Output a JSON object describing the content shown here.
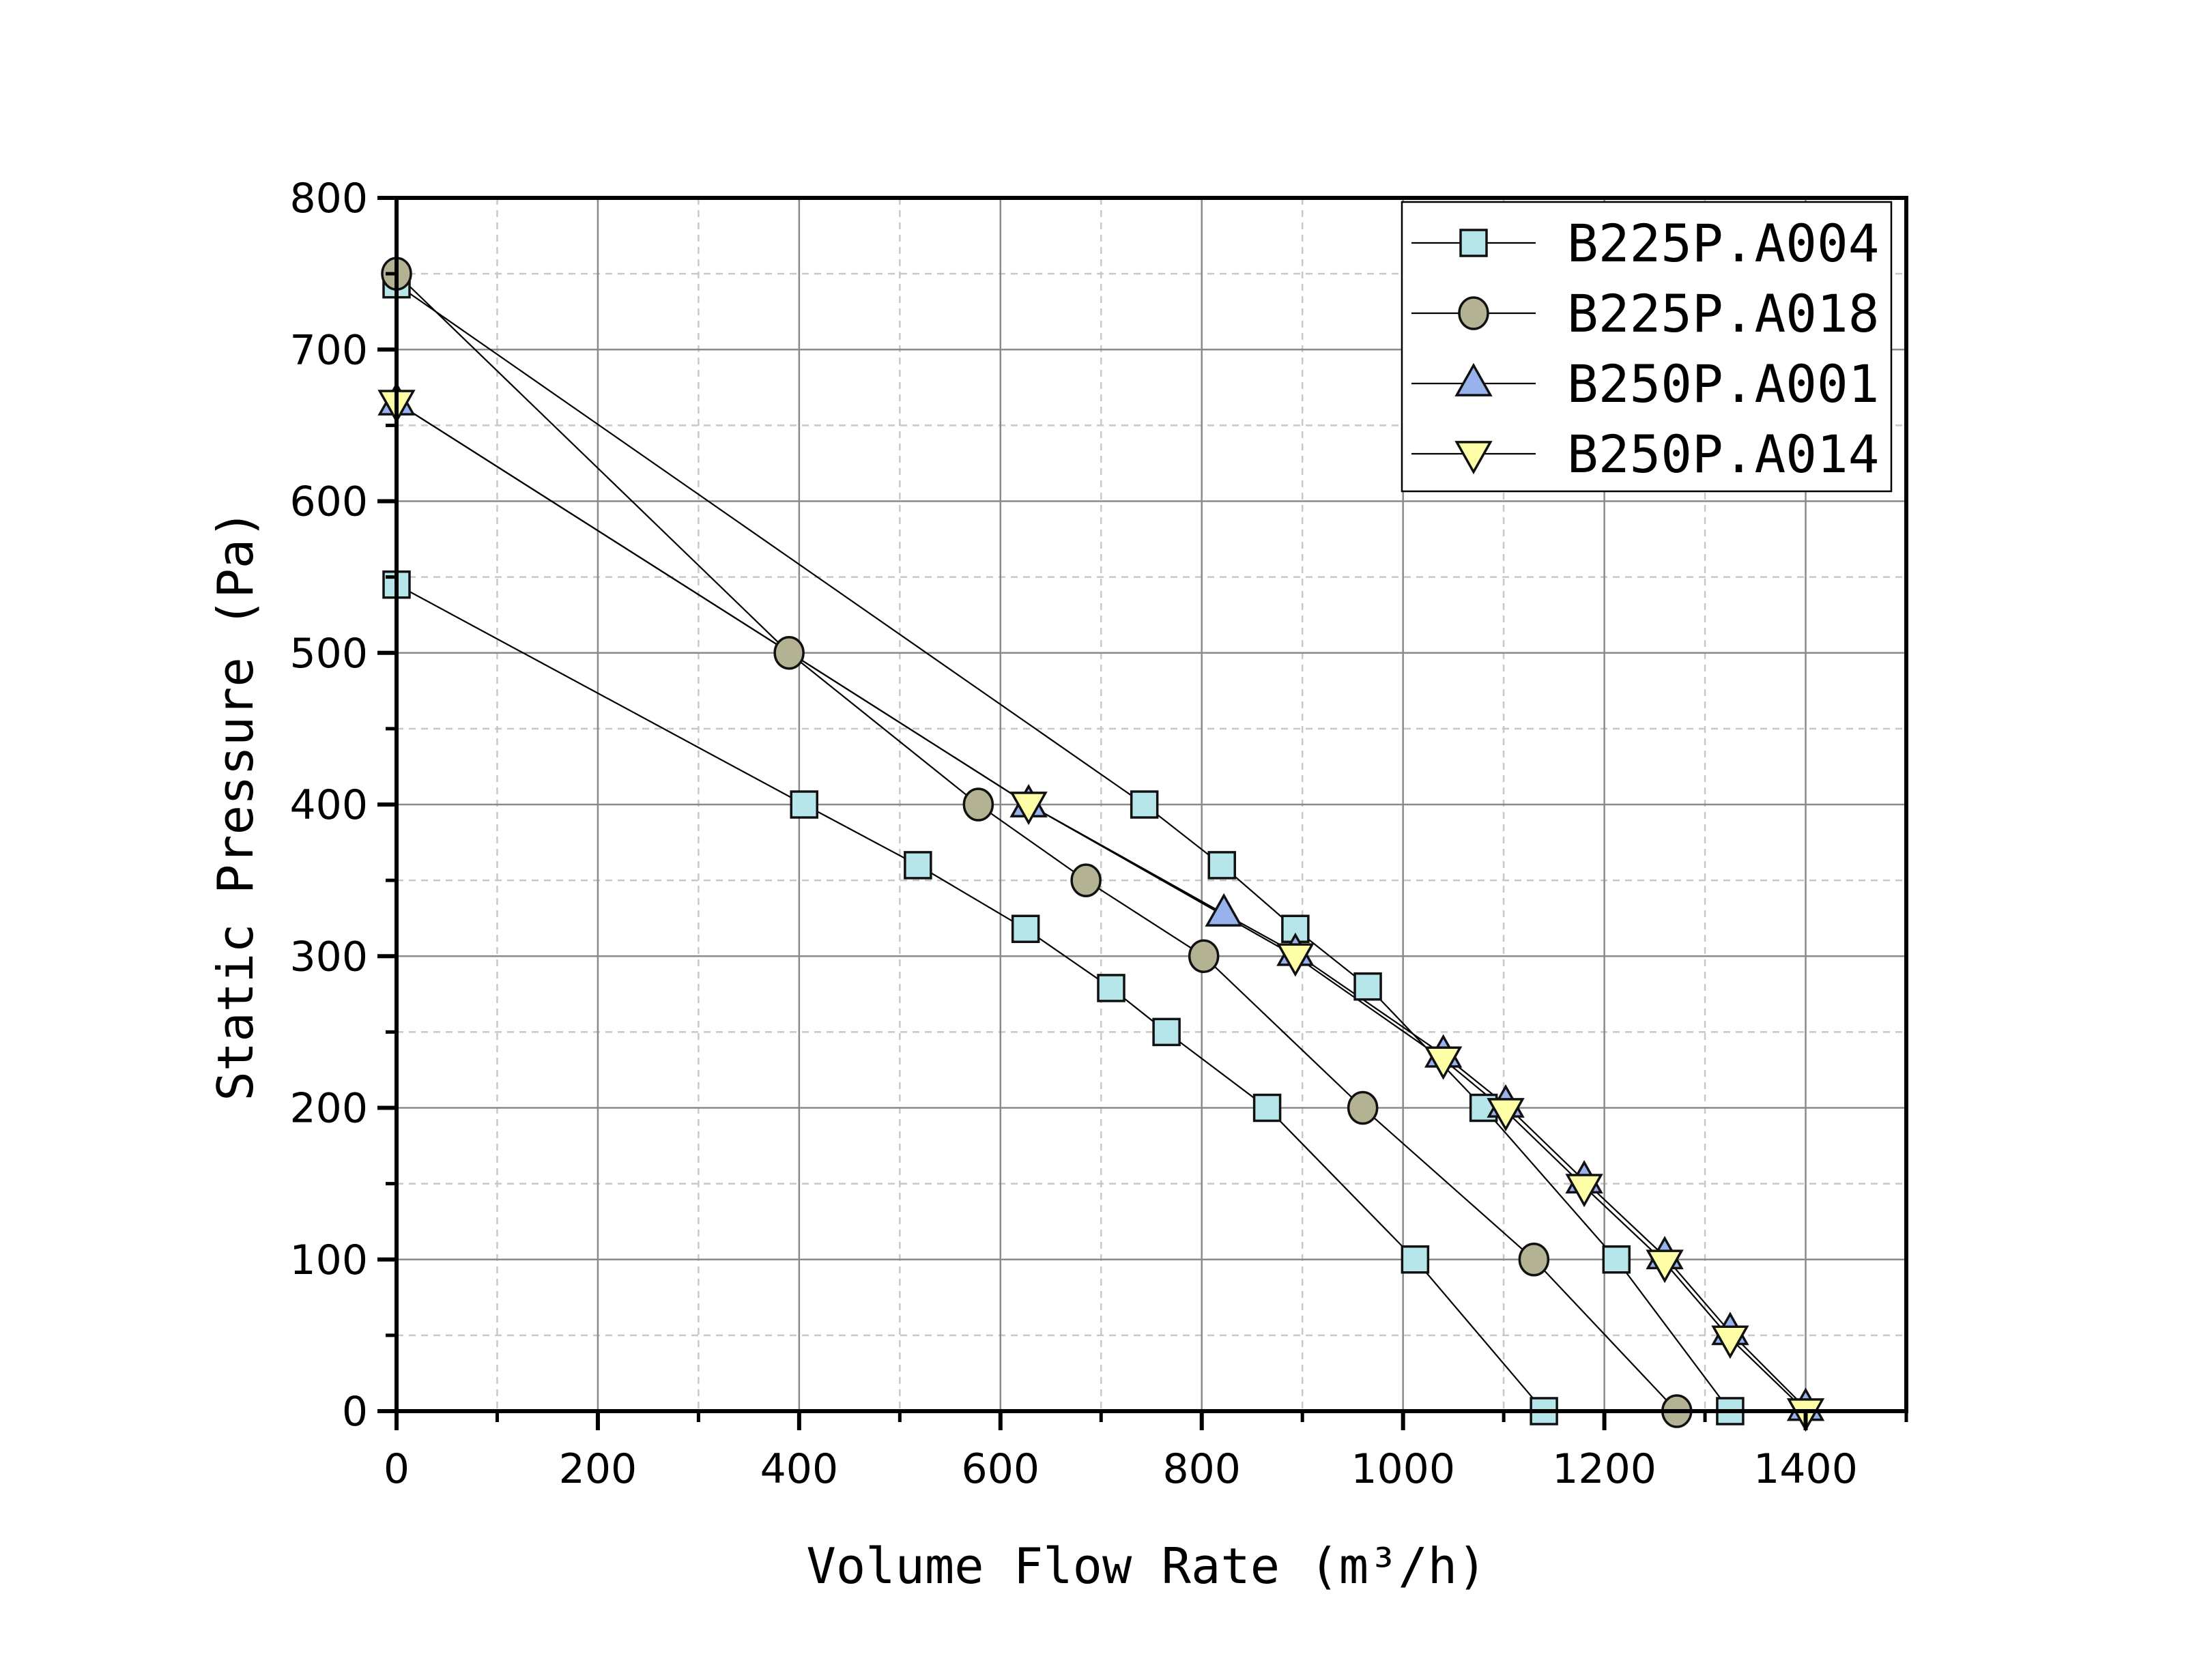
{
  "chart_data": {
    "type": "line",
    "title": "",
    "xlabel": "Volume Flow Rate (m³/h)",
    "ylabel": "Static Pressure (Pa)",
    "xlim": [
      0,
      1500
    ],
    "ylim": [
      0,
      800
    ],
    "xticks": [
      0,
      200,
      400,
      600,
      800,
      1000,
      1200,
      1400
    ],
    "yticks": [
      0,
      100,
      200,
      300,
      400,
      500,
      600,
      700,
      800
    ],
    "grid": true,
    "legend_position": "top-right",
    "legend": [
      "B225P.A004",
      "B225P.A018",
      "B250P.A001",
      "B250P.A014"
    ],
    "series": [
      {
        "name": "B225P.A004",
        "marker": "square",
        "color": "#b6e6ea",
        "x": [
          0,
          405,
          518,
          625,
          710,
          765,
          865,
          1012,
          1140
        ],
        "y": [
          545,
          400,
          360,
          318,
          279,
          250,
          200,
          100,
          0
        ]
      },
      {
        "marker": "square",
        "color": "#b6e6ea",
        "x": [
          0,
          743,
          820,
          893,
          965,
          1080,
          1212,
          1325
        ],
        "y": [
          743,
          400,
          360,
          318,
          280,
          200,
          100,
          0
        ]
      },
      {
        "name": "B225P.A018",
        "marker": "circle",
        "color": "#b3b393",
        "x": [
          0,
          390,
          578,
          685,
          802,
          960,
          1130,
          1272
        ],
        "y": [
          750,
          500,
          400,
          350,
          300,
          200,
          100,
          0
        ]
      },
      {
        "name": "B250P.A001",
        "marker": "triangle-up",
        "color": "#98b2ee",
        "x": [
          0,
          628,
          822,
          893,
          1040,
          1102,
          1180,
          1260,
          1325,
          1400
        ],
        "y": [
          665,
          400,
          328,
          302,
          235,
          202,
          152,
          102,
          52,
          2
        ]
      },
      {
        "name": "B250P.A014",
        "marker": "triangle-down",
        "color": "#ffffa8",
        "x": [
          0,
          628,
          893,
          1040,
          1102,
          1180,
          1260,
          1325,
          1400
        ],
        "y": [
          665,
          400,
          300,
          232,
          198,
          148,
          98,
          48,
          0
        ]
      }
    ]
  }
}
